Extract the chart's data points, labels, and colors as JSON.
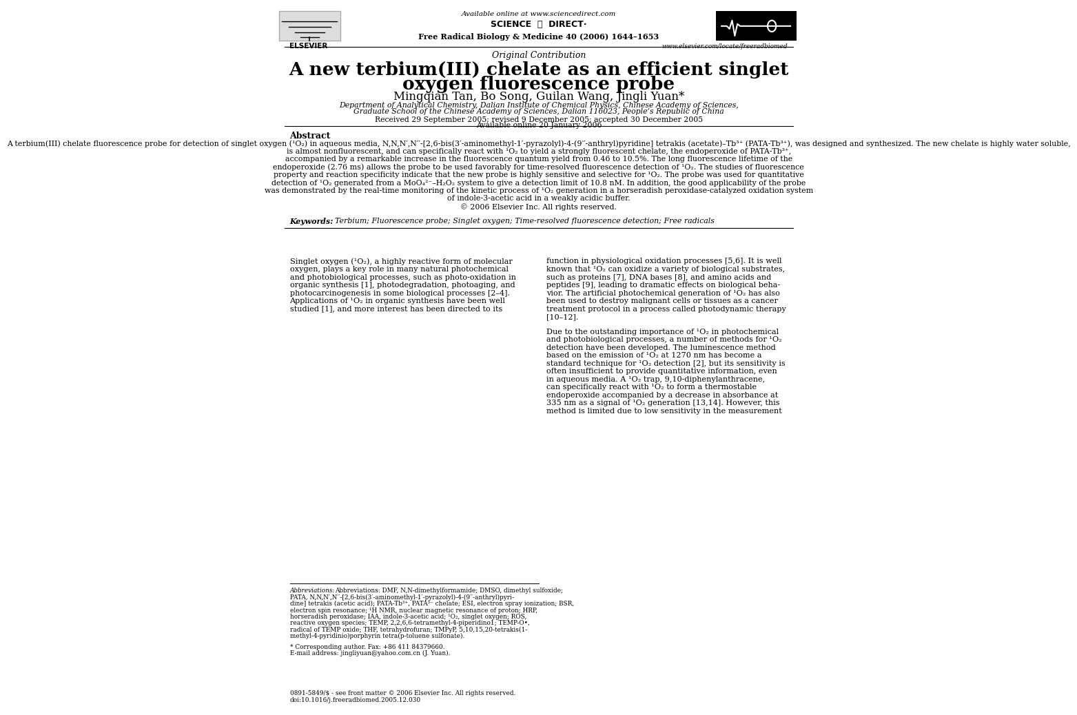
{
  "page_width": 9.92,
  "page_height": 13.23,
  "bg_color": "#ffffff",
  "available_online_text": "Available online at www.sciencedirect.com",
  "journal_line": "Free Radical Biology & Medicine 40 (2006) 1644–1653",
  "website_text": "www.elsevier.com/locate/freeradbiomed",
  "elsevier_text": "ELSEVIER",
  "article_type": "Original Contribution",
  "title_line1": "A new terbium(III) chelate as an efficient singlet",
  "title_line2": "oxygen fluorescence probe",
  "authors": "Mingqian Tan, Bo Song, Guilan Wang, Jingli Yuan*",
  "affiliation_line1": "Department of Analytical Chemistry, Dalian Institute of Chemical Physics, Chinese Academy of Sciences,",
  "affiliation_line2": "Graduate School of the Chinese Academy of Sciences, Dalian 116023, People’s Republic of China",
  "dates_line1": "Received 29 September 2005; revised 9 December 2005; accepted 30 December 2005",
  "dates_line2": "Available online 20 January 2006",
  "abstract_title": "Abstract",
  "keywords_label": "Keywords: ",
  "keywords_text": "Terbium; Fluorescence probe; Singlet oxygen; Time-resolved fluorescence detection; Free radicals",
  "footnote_corresponding": "* Corresponding author. Fax: +86 411 84379660.",
  "footnote_email": "E-mail address: jingliyuan@yahoo.com.cn (J. Yuan).",
  "footnote_bottom1": "0891-5849/$ - see front matter © 2006 Elsevier Inc. All rights reserved.",
  "footnote_bottom2": "doi:10.1016/j.freeradbiomed.2005.12.030",
  "abstract_lines": [
    "A terbium(III) chelate fluorescence probe for detection of singlet oxygen (¹O₂) in aqueous media, N,N,N′,N′′-[2,6-bis(3′-aminomethyl-1′-pyrazolyl)-4-(9′′-anthryl)pyridine] tetrakis (acetate)–Tb³⁺ (PATA-Tb³⁺), was designed and synthesized. The new chelate is highly water soluble,",
    "is almost nonfluorescent, and can specifically react with ¹O₂ to yield a strongly fluorescent chelate, the endoperoxide of PATA-Tb³⁺,",
    "accompanied by a remarkable increase in the fluorescence quantum yield from 0.46 to 10.5%. The long fluorescence lifetime of the",
    "endoperoxide (2.76 ms) allows the probe to be used favorably for time-resolved fluorescence detection of ¹O₂. The studies of fluorescence",
    "property and reaction specificity indicate that the new probe is highly sensitive and selective for ¹O₂. The probe was used for quantitative",
    "detection of ¹O₂ generated from a MoO₄²⁻–H₂O₂ system to give a detection limit of 10.8 nM. In addition, the good applicability of the probe",
    "was demonstrated by the real-time monitoring of the kinetic process of ¹O₂ generation in a horseradish peroxidase-catalyzed oxidation system",
    "of indole-3-acetic acid in a weakly acidic buffer.",
    "© 2006 Elsevier Inc. All rights reserved."
  ],
  "col1_lines": [
    "Singlet oxygen (¹O₂), a highly reactive form of molecular",
    "oxygen, plays a key role in many natural photochemical",
    "and photobiological processes, such as photo-oxidation in",
    "organic synthesis [1], photodegradation, photoaging, and",
    "photocarcinogenesis in some biological processes [2–4].",
    "Applications of ¹O₂ in organic synthesis have been well",
    "studied [1], and more interest has been directed to its"
  ],
  "col2_lines_p1": [
    "function in physiological oxidation processes [5,6]. It is well",
    "known that ¹O₂ can oxidize a variety of biological substrates,",
    "such as proteins [7], DNA bases [8], and amino acids and",
    "peptides [9], leading to dramatic effects on biological beha-",
    "vior. The artificial photochemical generation of ¹O₂ has also",
    "been used to destroy malignant cells or tissues as a cancer",
    "treatment protocol in a process called photodynamic therapy",
    "[10–12]."
  ],
  "col2_lines_p2": [
    "Due to the outstanding importance of ¹O₂ in photochemical",
    "and photobiological processes, a number of methods for ¹O₂",
    "detection have been developed. The luminescence method",
    "based on the emission of ¹O₂ at 1270 nm has become a",
    "standard technique for ¹O₂ detection [2], but its sensitivity is",
    "often insufficient to provide quantitative information, even",
    "in aqueous media. A ¹O₂ trap, 9,10-diphenylanthracene,",
    "can specifically react with ¹O₂ to form a thermostable",
    "endoperoxide accompanied by a decrease in absorbance at",
    "335 nm as a signal of ¹O₂ generation [13,14]. However, this",
    "method is limited due to low sensitivity in the measurement"
  ],
  "abbrev_lines": [
    "Abbreviations: DMF, N,N-dimethylformamide; DMSO, dimethyl sulfoxide;",
    "PATA, N,N,N′,N′′-[2,6-bis(3′-aminomethyl-1′-pyrazolyl)-4-(9′′-anthryl)pyri-",
    "dine] tetrakis (acetic acid); PATA-Tb³⁺, PATA³⁻ chelate; ESI, electron spray ionization; BSR,",
    "electron spin resonance; ¹H NMR, nuclear magnetic resonance of proton; HRP,",
    "horseradish peroxidase; IAA, indole-3-acetic acid; ¹O₂, singlet oxygen; ROS,",
    "reactive oxygen species; TEMP, 2,2,6,6-tetramethyl-4-piperidino1; TEMP-O•,",
    "radical of TEMP oxide; THF, tetrahydrofuran; TMPyP, 5,10,15,20-tetrakis(1-",
    "methyl-4-pyridinio)porphyrin tetra(p-toluene sulfonate)."
  ]
}
